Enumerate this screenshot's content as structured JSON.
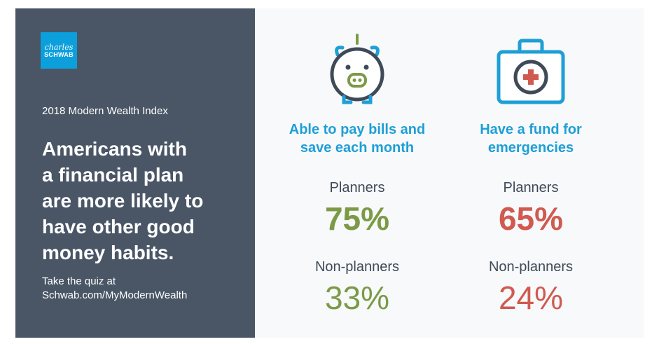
{
  "brand": {
    "logo_line1": "charles",
    "logo_line2": "SCHWAB"
  },
  "left_panel": {
    "index_title": "2018 Modern Wealth Index",
    "headline": "Americans with\na financial plan\nare more likely to\nhave other good\nmoney habits.",
    "cta_line1": "Take the quiz at",
    "cta_line2": "Schwab.com/MyModernWealth"
  },
  "stats": [
    {
      "icon": "piggy-bank-icon",
      "heading": "Able to pay bills and\nsave each month",
      "planners_label": "Planners",
      "planners_value": "75%",
      "nonplanners_label": "Non-planners",
      "nonplanners_value": "33%",
      "value_color": "#7c9a46"
    },
    {
      "icon": "first-aid-kit-icon",
      "heading": "Have a fund for\nemergencies",
      "planners_label": "Planners",
      "planners_value": "65%",
      "nonplanners_label": "Non-planners",
      "nonplanners_value": "24%",
      "value_color": "#d05a50"
    }
  ],
  "colors": {
    "panel": "#4a5666",
    "accent_blue": "#1e9fd6",
    "green": "#7c9a46",
    "red": "#d05a50"
  }
}
